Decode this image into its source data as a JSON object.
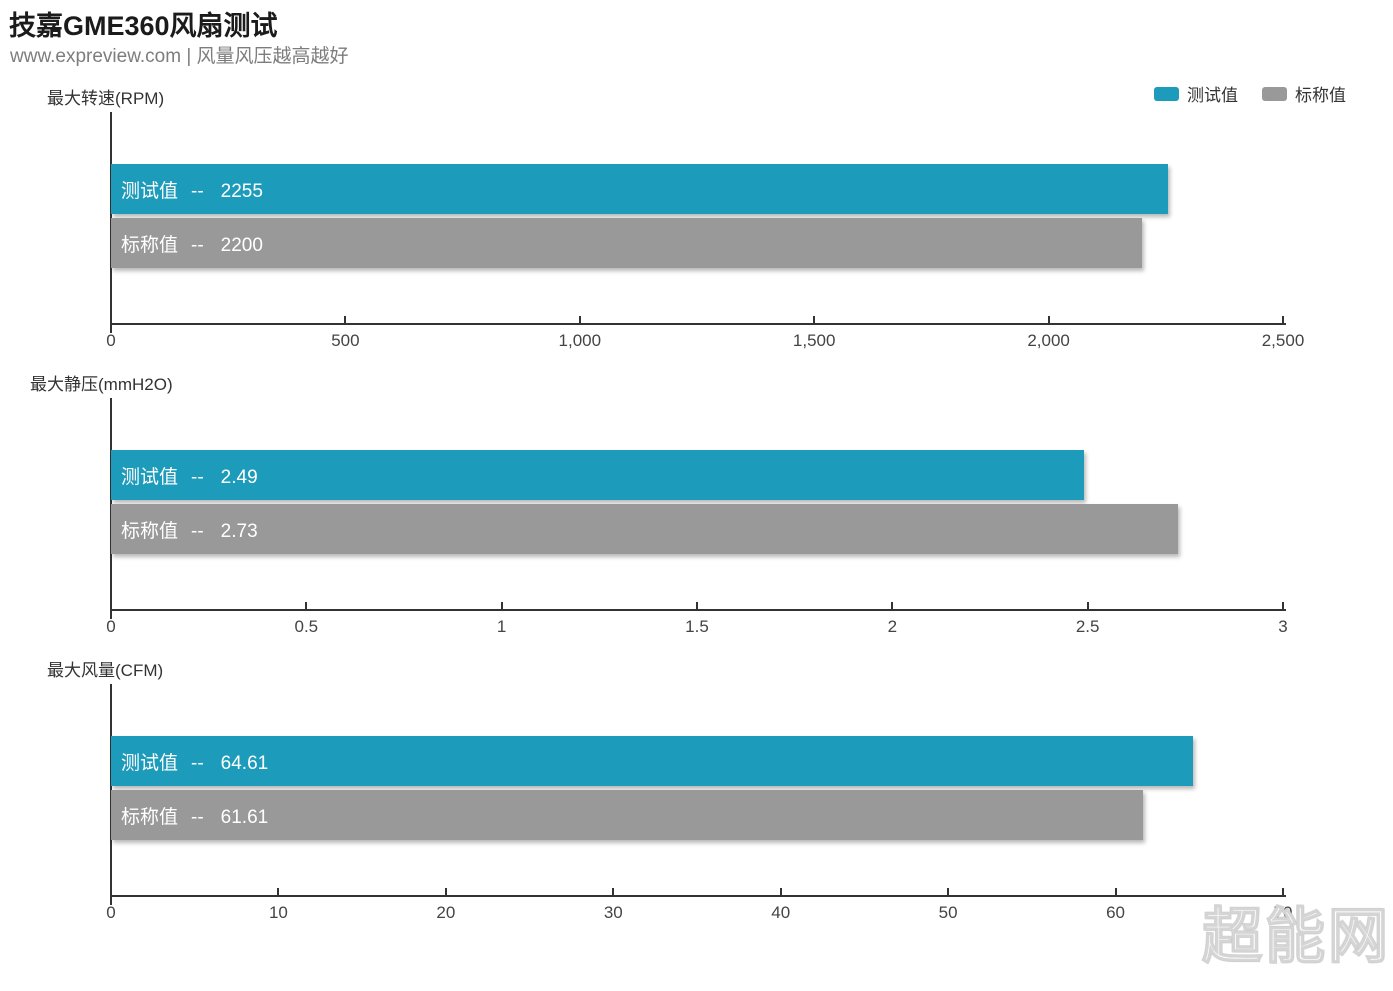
{
  "header": {
    "title": "技嘉GME360风扇测试",
    "subtitle": "www.expreview.com | 风量风压越高越好"
  },
  "legend": {
    "items": [
      {
        "name": "test-value",
        "label": "测试值",
        "color": "#1d9bba"
      },
      {
        "name": "nominal-value",
        "label": "标称值",
        "color": "#999999"
      }
    ]
  },
  "watermark": "超能网",
  "colors": {
    "test_value_bar": "#1d9bba",
    "nominal_value_bar": "#999999",
    "axis": "#333333",
    "tick_label": "#444444",
    "bar_label": "#ffffff",
    "background": "#ffffff"
  },
  "bar_label_separator": "--",
  "chart_data": [
    {
      "type": "bar",
      "orientation": "horizontal",
      "title": "最大转速(RPM)",
      "xlim": [
        0,
        2500
      ],
      "tick_labels": [
        "0",
        "500",
        "1,000",
        "1,500",
        "2,000",
        "2,500"
      ],
      "grid": false,
      "legend_position": "top-right",
      "series": [
        {
          "name": "测试值",
          "value": 2255,
          "display": "2255",
          "color": "#1d9bba",
          "decal": false
        },
        {
          "name": "标称值",
          "value": 2200,
          "display": "2200",
          "color": "#999999",
          "decal": true
        }
      ]
    },
    {
      "type": "bar",
      "orientation": "horizontal",
      "title": "最大静压(mmH2O)",
      "xlim": [
        0,
        3
      ],
      "tick_labels": [
        "0",
        "0.5",
        "1",
        "1.5",
        "2",
        "2.5",
        "3"
      ],
      "grid": false,
      "legend_position": "top-right",
      "series": [
        {
          "name": "测试值",
          "value": 2.49,
          "display": "2.49",
          "color": "#1d9bba",
          "decal": false
        },
        {
          "name": "标称值",
          "value": 2.73,
          "display": "2.73",
          "color": "#999999",
          "decal": true
        }
      ]
    },
    {
      "type": "bar",
      "orientation": "horizontal",
      "title": "最大风量(CFM)",
      "xlim": [
        0,
        70
      ],
      "tick_labels": [
        "0",
        "10",
        "20",
        "30",
        "40",
        "50",
        "60",
        "70"
      ],
      "grid": false,
      "legend_position": "top-right",
      "series": [
        {
          "name": "测试值",
          "value": 64.61,
          "display": "64.61",
          "color": "#1d9bba",
          "decal": false
        },
        {
          "name": "标称值",
          "value": 61.61,
          "display": "61.61",
          "color": "#999999",
          "decal": true
        }
      ]
    }
  ]
}
